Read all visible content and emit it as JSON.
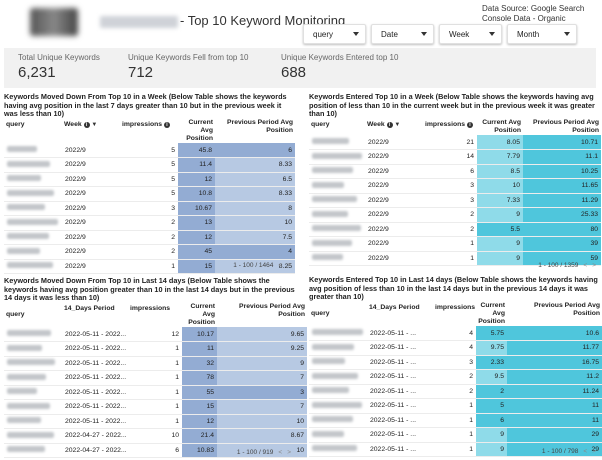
{
  "header": {
    "title": "- Top 10 Keyword Monitoring",
    "datasource": "Data Source: Google Search Console Data - Organic"
  },
  "filters": [
    "query",
    "Date",
    "Week",
    "Month"
  ],
  "scorecards": [
    {
      "label": "Total Unique Keywords",
      "value": "6,231"
    },
    {
      "label": "Unique Keywords Fell from top 10",
      "value": "712"
    },
    {
      "label": "Unique Keywords Entered top 10",
      "value": "688"
    }
  ],
  "colors": {
    "blue_light": "#dce6f3",
    "blue_mid": "#b7c9e3",
    "blue_dark": "#93acd3",
    "teal_light": "#c8eef4",
    "teal_mid": "#8fdbe9",
    "teal_dark": "#4fc6dc"
  },
  "panels": [
    {
      "title": "Keywords Moved Down From Top 10 in a Week (Below Table shows the keywords having avg position in the last 7 days greater than 10 but in the previous week it was less than 10)",
      "col_query": "query",
      "col_period": "Week",
      "col_impr": "impressions",
      "col_cur": "Current Avg Position",
      "col_prev": "Previous Period Avg Position",
      "pager": "1 - 100 / 1464",
      "rows": [
        {
          "period": "2022/9",
          "impr": "5",
          "cur": "45.8",
          "prev": "6"
        },
        {
          "period": "2022/9",
          "impr": "5",
          "cur": "11.4",
          "prev": "8.33"
        },
        {
          "period": "2022/9",
          "impr": "5",
          "cur": "12",
          "prev": "6.5"
        },
        {
          "period": "2022/9",
          "impr": "5",
          "cur": "10.8",
          "prev": "8.33"
        },
        {
          "period": "2022/9",
          "impr": "3",
          "cur": "10.67",
          "prev": "8"
        },
        {
          "period": "2022/9",
          "impr": "2",
          "cur": "13",
          "prev": "10"
        },
        {
          "period": "2022/9",
          "impr": "2",
          "cur": "12",
          "prev": "7.5"
        },
        {
          "period": "2022/9",
          "impr": "2",
          "cur": "45",
          "prev": "4"
        },
        {
          "period": "2022/9",
          "impr": "1",
          "cur": "15",
          "prev": "8.25"
        }
      ]
    },
    {
      "title": "Keywords Entered Top 10 in a Week (Below Table shows the keywords having avg position of less than 10 in the current week but in the previous week it was greater than 10)",
      "col_query": "query",
      "col_period": "Week",
      "col_impr": "impressions",
      "col_cur": "Current Avg Position",
      "col_prev": "Previous Period Avg Position",
      "pager": "1 - 100 / 1359",
      "rows": [
        {
          "period": "2022/9",
          "impr": "21",
          "cur": "8.05",
          "prev": "10.71"
        },
        {
          "period": "2022/9",
          "impr": "14",
          "cur": "7.79",
          "prev": "11.1"
        },
        {
          "period": "2022/9",
          "impr": "6",
          "cur": "8.5",
          "prev": "10.25"
        },
        {
          "period": "2022/9",
          "impr": "3",
          "cur": "10",
          "prev": "11.65"
        },
        {
          "period": "2022/9",
          "impr": "3",
          "cur": "7.33",
          "prev": "11.29"
        },
        {
          "period": "2022/9",
          "impr": "2",
          "cur": "9",
          "prev": "25.33"
        },
        {
          "period": "2022/9",
          "impr": "2",
          "cur": "5.5",
          "prev": "80"
        },
        {
          "period": "2022/9",
          "impr": "1",
          "cur": "9",
          "prev": "39"
        },
        {
          "period": "2022/9",
          "impr": "1",
          "cur": "9",
          "prev": "59"
        }
      ]
    },
    {
      "title": "Keywords Moved Down From Top 10 in Last 14 days (Below Table shows the keywords having avg position greater than 10 in the last 14 days but in the previous 14 days it was less than 10)",
      "col_query": "query",
      "col_period": "14_Days Period",
      "col_impr": "impressions",
      "col_cur": "Current Avg Position",
      "col_prev": "Previous Period Avg Position",
      "pager": "1 - 100 / 919",
      "rows": [
        {
          "period": "2022-05-11 - 2022...",
          "impr": "12",
          "cur": "10.17",
          "prev": "9.65"
        },
        {
          "period": "2022-05-11 - 2022...",
          "impr": "1",
          "cur": "11",
          "prev": "9.25"
        },
        {
          "period": "2022-05-11 - 2022...",
          "impr": "1",
          "cur": "32",
          "prev": "9"
        },
        {
          "period": "2022-05-11 - 2022...",
          "impr": "1",
          "cur": "78",
          "prev": "7"
        },
        {
          "period": "2022-05-11 - 2022...",
          "impr": "1",
          "cur": "55",
          "prev": "3"
        },
        {
          "period": "2022-05-11 - 2022...",
          "impr": "1",
          "cur": "15",
          "prev": "7"
        },
        {
          "period": "2022-05-11 - 2022...",
          "impr": "1",
          "cur": "12",
          "prev": "10"
        },
        {
          "period": "2022-04-27 - 2022...",
          "impr": "10",
          "cur": "21.4",
          "prev": "8.67"
        },
        {
          "period": "2022-04-27 - 2022...",
          "impr": "6",
          "cur": "10.83",
          "prev": "10"
        }
      ]
    },
    {
      "title": "Keywords Entered Top 10 in Last 14 days (Below Table shows the keywords having avg position of less than 10 in the last 14 days but in the previous 14 days it was greater than 10)",
      "col_query": "query",
      "col_period": "14_Days Period",
      "col_impr": "impressions",
      "col_cur": "Current Avg Position",
      "col_prev": "Previous Period Avg Position",
      "pager": "1 - 100 / 798",
      "rows": [
        {
          "period": "2022-05-11 - ...",
          "impr": "4",
          "cur": "5.75",
          "prev": "10.6"
        },
        {
          "period": "2022-05-11 - ...",
          "impr": "4",
          "cur": "9.75",
          "prev": "11.77"
        },
        {
          "period": "2022-05-11 - ...",
          "impr": "3",
          "cur": "2.33",
          "prev": "16.75"
        },
        {
          "period": "2022-05-11 - ...",
          "impr": "2",
          "cur": "9.5",
          "prev": "11.2"
        },
        {
          "period": "2022-05-11 - ...",
          "impr": "2",
          "cur": "2",
          "prev": "11.24"
        },
        {
          "period": "2022-05-11 - ...",
          "impr": "1",
          "cur": "5",
          "prev": "11"
        },
        {
          "period": "2022-05-11 - ...",
          "impr": "1",
          "cur": "6",
          "prev": "11"
        },
        {
          "period": "2022-05-11 - ...",
          "impr": "1",
          "cur": "9",
          "prev": "29"
        },
        {
          "period": "2022-05-11 - ...",
          "impr": "1",
          "cur": "9",
          "prev": "29"
        }
      ]
    }
  ]
}
